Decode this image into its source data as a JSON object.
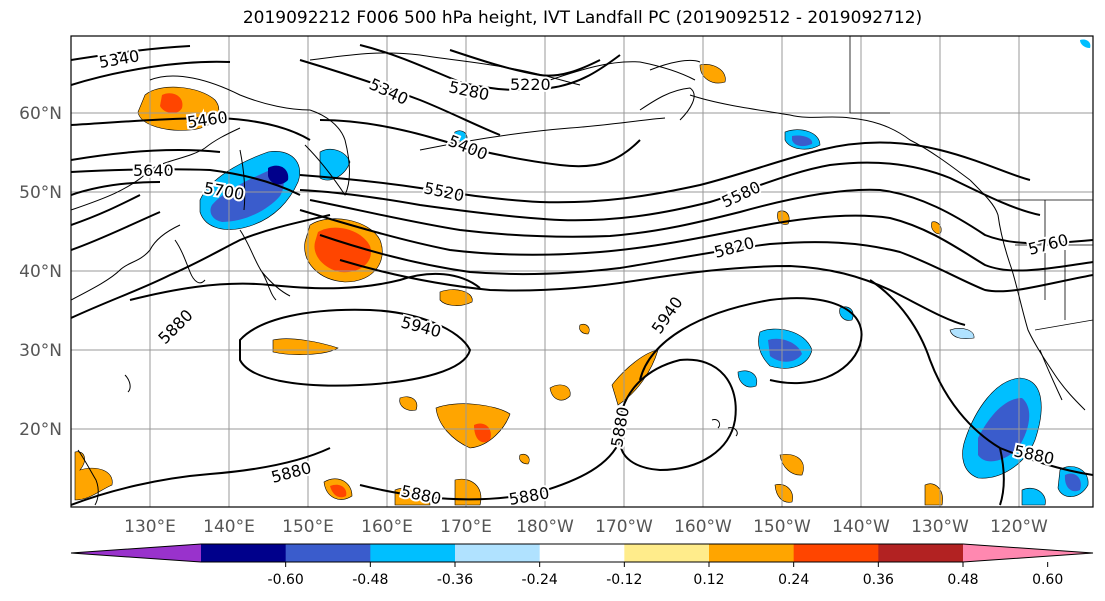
{
  "title": "2019092212 F006 500 hPa height, IVT Landfall PC (2019092512 - 2019092712)",
  "lat_labels": [
    "60°N",
    "50°N",
    "40°N",
    "30°N",
    "20°N"
  ],
  "lon_labels": [
    "130°E",
    "140°E",
    "150°E",
    "160°E",
    "170°E",
    "180°W",
    "170°W",
    "160°W",
    "150°W",
    "140°W",
    "130°W",
    "120°W"
  ],
  "contour_labels": [
    "5340",
    "5340",
    "5280",
    "5220",
    "5460",
    "5400",
    "5640",
    "5700",
    "5520",
    "5580",
    "5820",
    "5760",
    "5940",
    "5940",
    "5880",
    "5880",
    "5880",
    "5880",
    "5880",
    "5880"
  ],
  "colorbar": {
    "colors": [
      "#9932cc",
      "#00008b",
      "#3a5ccc",
      "#00bfff",
      "#b0e2ff",
      "#ffffff",
      "#ffec8b",
      "#ffa500",
      "#ff4500",
      "#b22222",
      "#ff88b0"
    ],
    "tick_labels": [
      "-0.60",
      "-0.48",
      "-0.36",
      "-0.24",
      "-0.12",
      "0.12",
      "0.24",
      "0.36",
      "0.48",
      "0.60"
    ]
  },
  "colors": {
    "land_line": "#000000",
    "grid": "#999999",
    "contour": "#000000"
  }
}
